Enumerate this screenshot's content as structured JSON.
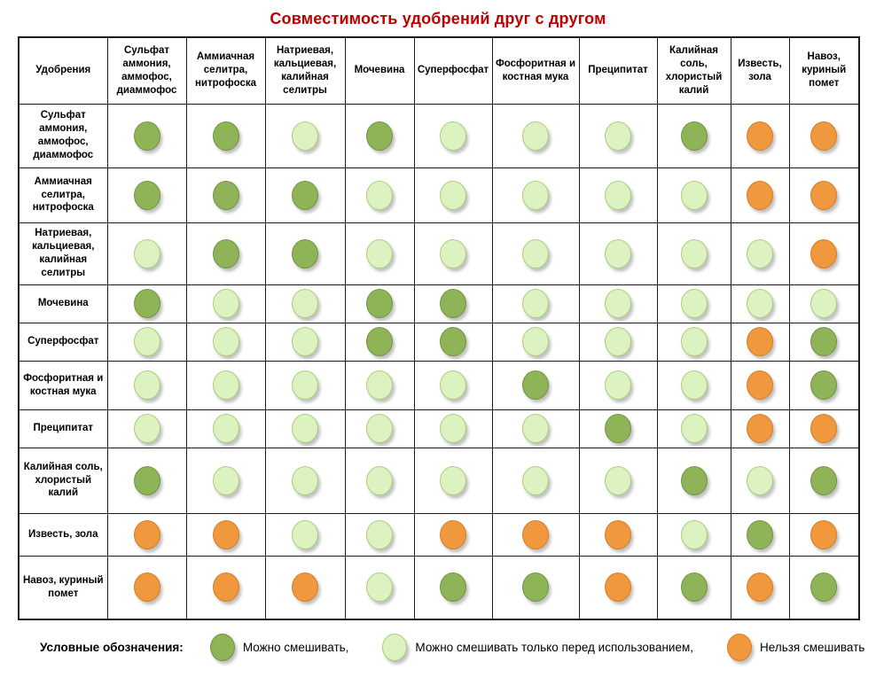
{
  "chart_data": {
    "type": "heatmap",
    "title": "Совместимость удобрений друг с другом",
    "corner_label": "Удобрения",
    "categories": [
      "Сульфат аммония, аммофос, диаммофос",
      "Аммиачная селитра, нитрофоска",
      "Натриевая, кальциевая, калийная селитры",
      "Мочевина",
      "Суперфосфат",
      "Фосфоритная и костная мука",
      "Преципитат",
      "Калийная соль, хлористый калий",
      "Известь, зола",
      "Навоз, куриный помет"
    ],
    "matrix": [
      [
        "mix",
        "mix",
        "before",
        "mix",
        "before",
        "before",
        "before",
        "mix",
        "no",
        "no"
      ],
      [
        "mix",
        "mix",
        "mix",
        "before",
        "before",
        "before",
        "before",
        "before",
        "no",
        "no"
      ],
      [
        "before",
        "mix",
        "mix",
        "before",
        "before",
        "before",
        "before",
        "before",
        "before",
        "no"
      ],
      [
        "mix",
        "before",
        "before",
        "mix",
        "mix",
        "before",
        "before",
        "before",
        "before",
        "before"
      ],
      [
        "before",
        "before",
        "before",
        "mix",
        "mix",
        "before",
        "before",
        "before",
        "no",
        "mix"
      ],
      [
        "before",
        "before",
        "before",
        "before",
        "before",
        "mix",
        "before",
        "before",
        "no",
        "mix"
      ],
      [
        "before",
        "before",
        "before",
        "before",
        "before",
        "before",
        "mix",
        "before",
        "no",
        "no"
      ],
      [
        "mix",
        "before",
        "before",
        "before",
        "before",
        "before",
        "before",
        "mix",
        "before",
        "mix"
      ],
      [
        "no",
        "no",
        "before",
        "before",
        "no",
        "no",
        "no",
        "before",
        "mix",
        "no"
      ],
      [
        "no",
        "no",
        "no",
        "before",
        "mix",
        "mix",
        "no",
        "mix",
        "no",
        "mix"
      ]
    ],
    "value_meanings": {
      "mix": "Можно смешивать",
      "before": "Можно смешивать только перед использованием",
      "no": "Нельзя смешивать"
    }
  },
  "legend": {
    "label": "Условные обозначения:",
    "items": [
      {
        "key": "mix",
        "label": "Можно смешивать,",
        "fill": "#8FB457",
        "border": "#71933F"
      },
      {
        "key": "before",
        "label": "Можно смешивать только перед использованием,",
        "fill": "#DDF2C1",
        "border": "#A9CE79"
      },
      {
        "key": "no",
        "label": "Нельзя смешивать",
        "fill": "#F0983E",
        "border": "#D67C22"
      }
    ]
  },
  "colors": {
    "title": "#C00000",
    "table_border": "#1A1A1A"
  }
}
